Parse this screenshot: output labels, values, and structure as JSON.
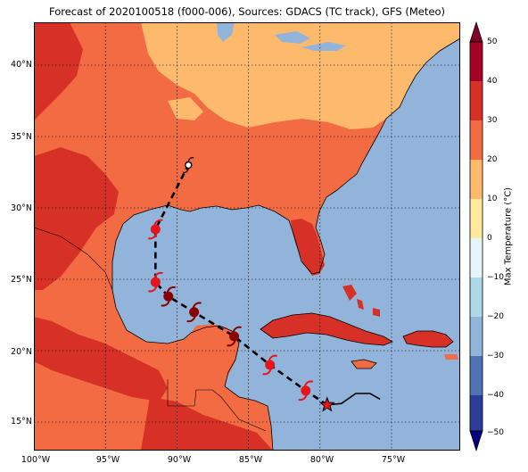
{
  "title": "Forecast of 2020100518 (f000-006), Sources: GDACS (TC track), GFS (Meteo)",
  "map": {
    "lat_labels": [
      "40°N",
      "35°N",
      "30°N",
      "25°N",
      "20°N",
      "15°N"
    ],
    "lon_labels": [
      "100°W",
      "95°W",
      "90°W",
      "85°W",
      "80°W",
      "75°W"
    ]
  },
  "colorbar": {
    "title": "Max Temperature (°C)",
    "tick_labels": [
      "50",
      "40",
      "30",
      "20",
      "10",
      "0",
      "−10",
      "−20",
      "−30",
      "−40",
      "−50"
    ]
  },
  "track": {
    "points": [
      {
        "lat": 16.2,
        "lon": -79.5,
        "marker": "star"
      },
      {
        "lat": 17.2,
        "lon": -81.0,
        "marker": "storm-red"
      },
      {
        "lat": 19.0,
        "lon": -83.5,
        "marker": "storm-red"
      },
      {
        "lat": 21.0,
        "lon": -86.0,
        "marker": "storm-dark"
      },
      {
        "lat": 22.7,
        "lon": -88.8,
        "marker": "storm-dark"
      },
      {
        "lat": 23.8,
        "lon": -90.6,
        "marker": "storm-dark"
      },
      {
        "lat": 24.8,
        "lon": -91.5,
        "marker": "storm-red"
      },
      {
        "lat": 28.5,
        "lon": -91.5,
        "marker": "storm-red"
      },
      {
        "lat": 33.0,
        "lon": -89.2,
        "marker": "low-white"
      }
    ],
    "history": [
      [
        -79.5,
        16.2
      ],
      [
        -78.5,
        16.3
      ],
      [
        -77.5,
        17.0
      ],
      [
        -76.5,
        17.0
      ],
      [
        -75.8,
        16.6
      ]
    ]
  }
}
